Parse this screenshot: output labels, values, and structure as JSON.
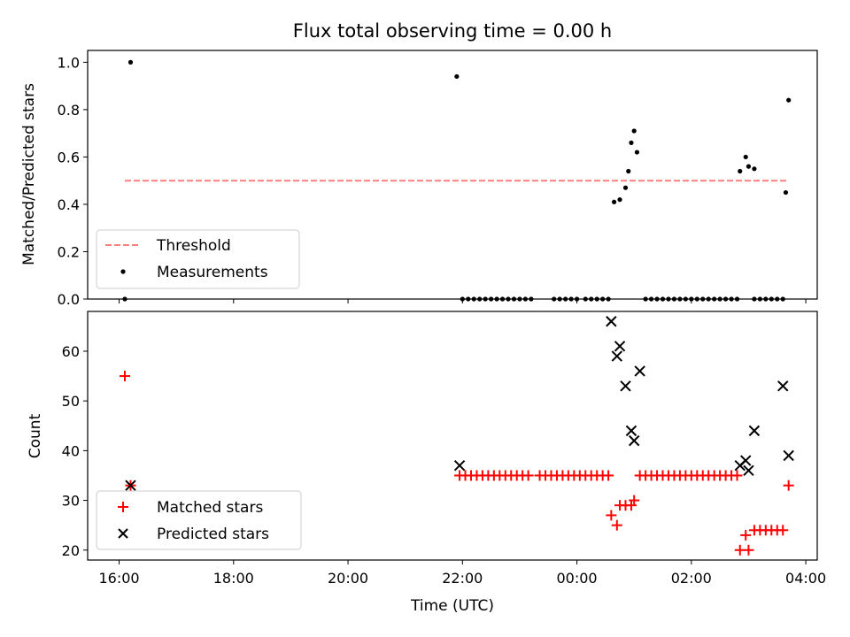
{
  "chart_data": [
    {
      "type": "scatter",
      "title": "Flux total observing time = 0.00 h",
      "ylabel": "Matched/Predicted stars",
      "xlim": [
        "16:00",
        "04:00"
      ],
      "ylim": [
        0,
        1.05
      ],
      "yticks": [
        "0.0",
        "0.2",
        "0.4",
        "0.6",
        "0.8",
        "1.0"
      ],
      "threshold": 0.5,
      "legend": {
        "loc": "lower-left",
        "entries": [
          "Threshold",
          "Measurements"
        ]
      },
      "colors": {
        "threshold": "#ff7f7f",
        "measurements": "#000000"
      },
      "measurements": [
        [
          16.1,
          0.0
        ],
        [
          16.2,
          1.0
        ],
        [
          21.9,
          0.94
        ],
        [
          22.0,
          0.0
        ],
        [
          22.1,
          0.0
        ],
        [
          22.2,
          0.0
        ],
        [
          22.3,
          0.0
        ],
        [
          22.4,
          0.0
        ],
        [
          22.5,
          0.0
        ],
        [
          22.6,
          0.0
        ],
        [
          22.7,
          0.0
        ],
        [
          22.8,
          0.0
        ],
        [
          22.9,
          0.0
        ],
        [
          23.0,
          0.0
        ],
        [
          23.1,
          0.0
        ],
        [
          23.2,
          0.0
        ],
        [
          23.6,
          0.0
        ],
        [
          23.7,
          0.0
        ],
        [
          23.8,
          0.0
        ],
        [
          23.9,
          0.0
        ],
        [
          24.0,
          0.0
        ],
        [
          24.15,
          0.0
        ],
        [
          24.25,
          0.0
        ],
        [
          24.35,
          0.0
        ],
        [
          24.45,
          0.0
        ],
        [
          24.55,
          0.0
        ],
        [
          24.65,
          0.41
        ],
        [
          24.75,
          0.42
        ],
        [
          24.85,
          0.47
        ],
        [
          24.9,
          0.54
        ],
        [
          24.95,
          0.66
        ],
        [
          25.0,
          0.71
        ],
        [
          25.05,
          0.62
        ],
        [
          25.2,
          0.0
        ],
        [
          25.3,
          0.0
        ],
        [
          25.4,
          0.0
        ],
        [
          25.5,
          0.0
        ],
        [
          25.6,
          0.0
        ],
        [
          25.7,
          0.0
        ],
        [
          25.8,
          0.0
        ],
        [
          25.9,
          0.0
        ],
        [
          26.0,
          0.0
        ],
        [
          26.1,
          0.0
        ],
        [
          26.2,
          0.0
        ],
        [
          26.3,
          0.0
        ],
        [
          26.4,
          0.0
        ],
        [
          26.5,
          0.0
        ],
        [
          26.6,
          0.0
        ],
        [
          26.7,
          0.0
        ],
        [
          26.8,
          0.0
        ],
        [
          26.85,
          0.54
        ],
        [
          26.95,
          0.6
        ],
        [
          27.0,
          0.56
        ],
        [
          27.1,
          0.55
        ],
        [
          27.1,
          0.0
        ],
        [
          27.2,
          0.0
        ],
        [
          27.3,
          0.0
        ],
        [
          27.4,
          0.0
        ],
        [
          27.5,
          0.0
        ],
        [
          27.6,
          0.0
        ],
        [
          27.65,
          0.45
        ],
        [
          27.7,
          0.84
        ]
      ]
    },
    {
      "type": "scatter",
      "xlabel": "Time (UTC)",
      "ylabel": "Count",
      "xlim": [
        "16:00",
        "04:00"
      ],
      "xticks": [
        "16:00",
        "18:00",
        "20:00",
        "22:00",
        "00:00",
        "02:00",
        "04:00"
      ],
      "ylim": [
        18,
        68
      ],
      "yticks": [
        "20",
        "30",
        "40",
        "50",
        "60"
      ],
      "legend": {
        "loc": "lower-left",
        "entries": [
          "Matched stars",
          "Predicted stars"
        ]
      },
      "colors": {
        "matched": "#ff0000",
        "predicted": "#000000"
      },
      "series": [
        {
          "name": "Matched stars",
          "marker": "+",
          "points": [
            [
              16.1,
              55
            ],
            [
              16.2,
              33
            ],
            [
              21.95,
              35
            ],
            [
              22.05,
              35
            ],
            [
              22.15,
              35
            ],
            [
              22.25,
              35
            ],
            [
              22.35,
              35
            ],
            [
              22.45,
              35
            ],
            [
              22.55,
              35
            ],
            [
              22.65,
              35
            ],
            [
              22.75,
              35
            ],
            [
              22.85,
              35
            ],
            [
              22.95,
              35
            ],
            [
              23.05,
              35
            ],
            [
              23.15,
              35
            ],
            [
              23.35,
              35
            ],
            [
              23.45,
              35
            ],
            [
              23.55,
              35
            ],
            [
              23.65,
              35
            ],
            [
              23.75,
              35
            ],
            [
              23.85,
              35
            ],
            [
              23.95,
              35
            ],
            [
              24.05,
              35
            ],
            [
              24.15,
              35
            ],
            [
              24.25,
              35
            ],
            [
              24.35,
              35
            ],
            [
              24.45,
              35
            ],
            [
              24.55,
              35
            ],
            [
              24.6,
              27
            ],
            [
              24.7,
              25
            ],
            [
              24.75,
              29
            ],
            [
              24.85,
              29
            ],
            [
              24.95,
              29
            ],
            [
              25.0,
              30
            ],
            [
              25.1,
              35
            ],
            [
              25.2,
              35
            ],
            [
              25.3,
              35
            ],
            [
              25.4,
              35
            ],
            [
              25.5,
              35
            ],
            [
              25.6,
              35
            ],
            [
              25.7,
              35
            ],
            [
              25.8,
              35
            ],
            [
              25.9,
              35
            ],
            [
              26.0,
              35
            ],
            [
              26.1,
              35
            ],
            [
              26.2,
              35
            ],
            [
              26.3,
              35
            ],
            [
              26.4,
              35
            ],
            [
              26.5,
              35
            ],
            [
              26.6,
              35
            ],
            [
              26.7,
              35
            ],
            [
              26.8,
              35
            ],
            [
              26.85,
              20
            ],
            [
              26.95,
              23
            ],
            [
              27.0,
              20
            ],
            [
              27.1,
              24
            ],
            [
              27.2,
              24
            ],
            [
              27.3,
              24
            ],
            [
              27.4,
              24
            ],
            [
              27.5,
              24
            ],
            [
              27.6,
              24
            ],
            [
              27.7,
              33
            ]
          ]
        },
        {
          "name": "Predicted stars",
          "marker": "x",
          "points": [
            [
              16.2,
              33
            ],
            [
              21.95,
              37
            ],
            [
              24.6,
              66
            ],
            [
              24.7,
              59
            ],
            [
              24.75,
              61
            ],
            [
              24.85,
              53
            ],
            [
              24.95,
              44
            ],
            [
              25.0,
              42
            ],
            [
              25.1,
              56
            ],
            [
              26.85,
              37
            ],
            [
              26.95,
              38
            ],
            [
              27.0,
              36
            ],
            [
              27.1,
              44
            ],
            [
              27.6,
              53
            ],
            [
              27.7,
              39
            ]
          ]
        }
      ]
    }
  ]
}
